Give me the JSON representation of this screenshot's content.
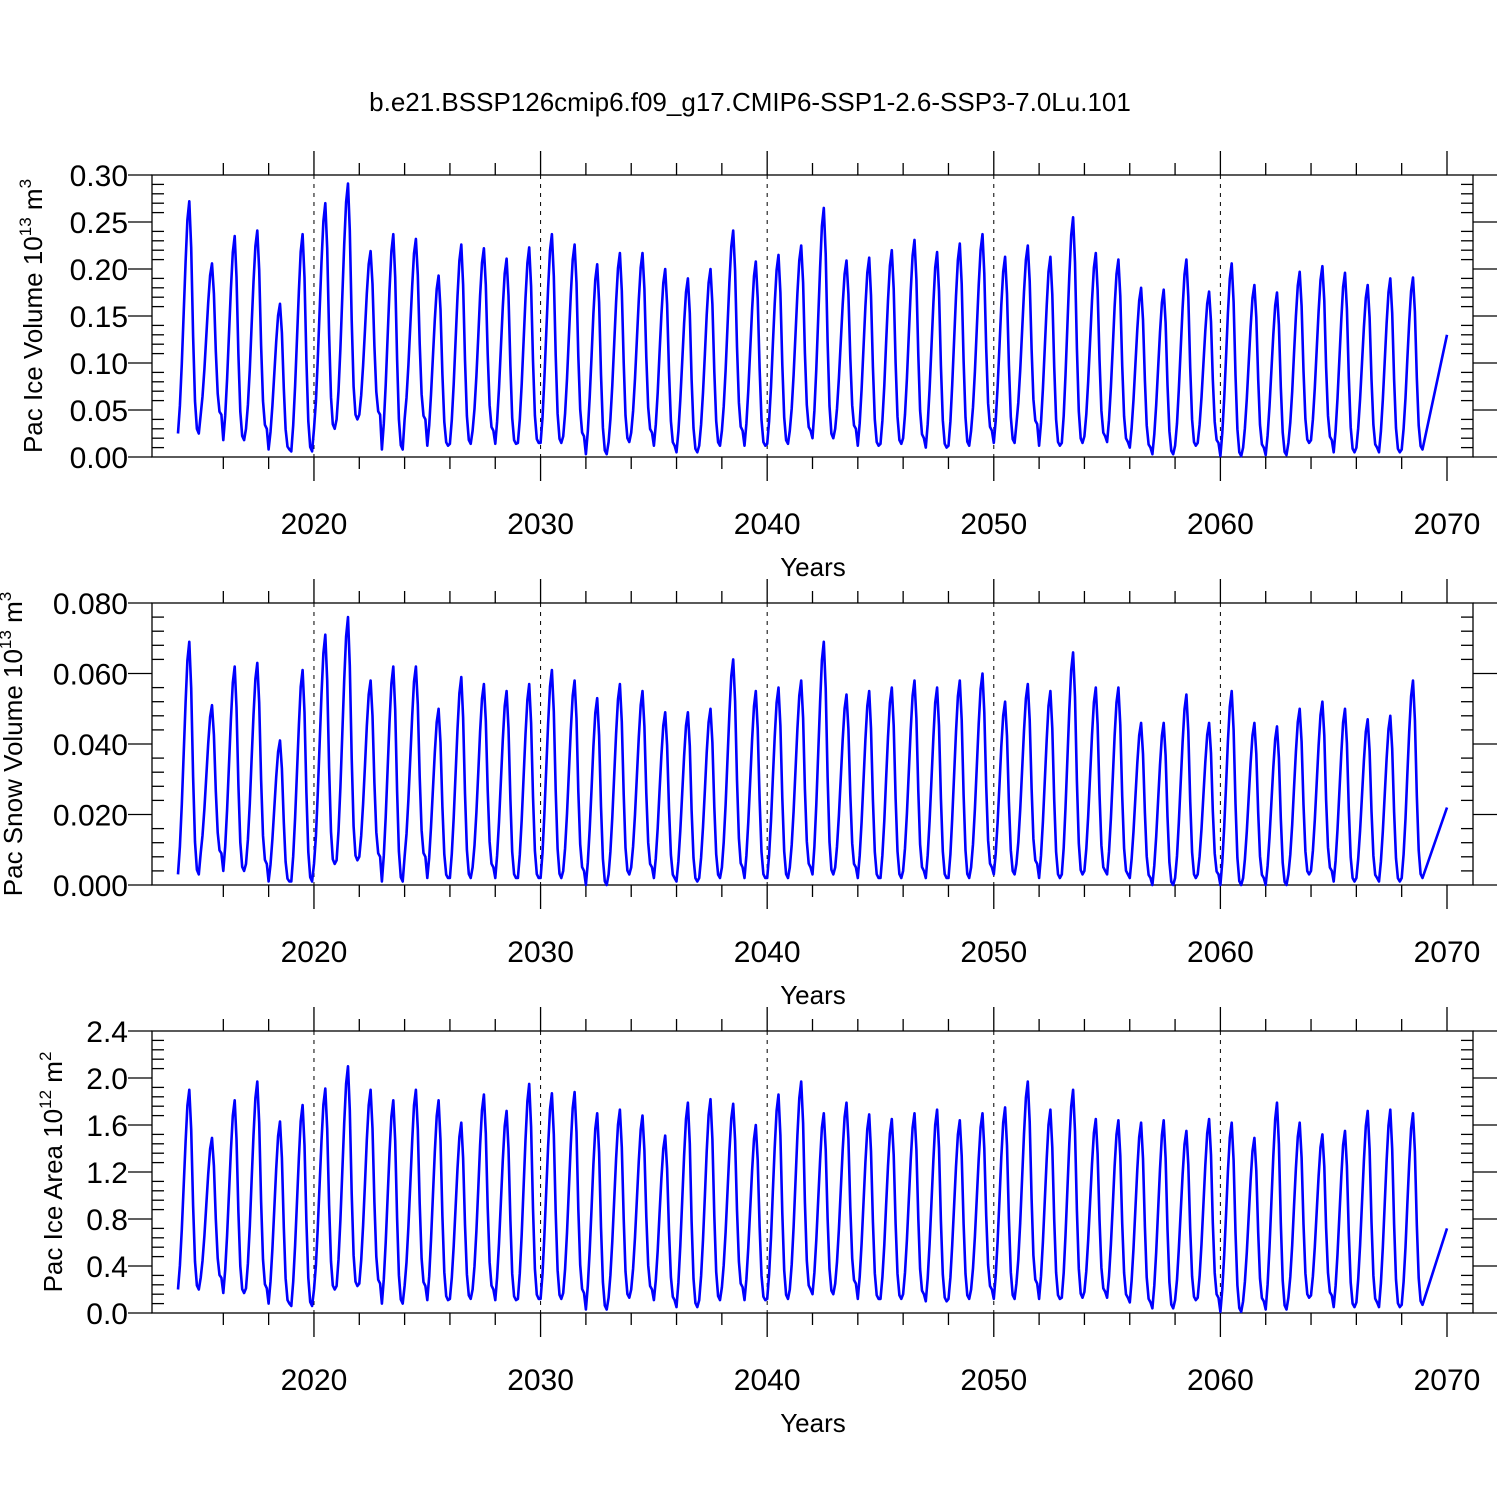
{
  "figure": {
    "title": "b.e21.BSSP126cmip6.f09_g17.CMIP6-SSP1-2.6-SSP3-7.0Lu.101"
  },
  "colors": {
    "series": "#0000ff",
    "axes": "#000000",
    "background": "#ffffff"
  },
  "chart_data": [
    {
      "type": "line",
      "title": "",
      "xlabel": "Years",
      "ylabel_main": "Pac Ice Volume 10",
      "ylabel_sup": "13",
      "ylabel_unit": " m",
      "ylabel_unit_sup": "3",
      "xlim": [
        2014,
        2070
      ],
      "ylim": [
        0.0,
        0.3
      ],
      "xticks": [
        2020,
        2030,
        2040,
        2050,
        2060,
        2070
      ],
      "xtick_labels": [
        "2020",
        "2030",
        "2040",
        "2050",
        "2060",
        "2070"
      ],
      "yticks": [
        0.0,
        0.05,
        0.1,
        0.15,
        0.2,
        0.25,
        0.3
      ],
      "ytick_labels": [
        "0.00",
        "0.05",
        "0.10",
        "0.15",
        "0.20",
        "0.25",
        "0.30"
      ],
      "grid": "x-only dashed",
      "series": [
        {
          "name": "Pac Ice Volume",
          "color": "#0000ff",
          "start": 2014.0,
          "end": 2070.0,
          "points_per_year": 12,
          "annual_max": [
            0.272,
            0.206,
            0.235,
            0.241,
            0.163,
            0.237,
            0.27,
            0.291,
            0.219,
            0.237,
            0.232,
            0.193,
            0.226,
            0.222,
            0.211,
            0.223,
            0.237,
            0.226,
            0.205,
            0.217,
            0.217,
            0.2,
            0.19,
            0.2,
            0.241,
            0.208,
            0.215,
            0.225,
            0.265,
            0.209,
            0.212,
            0.22,
            0.231,
            0.218,
            0.227,
            0.237,
            0.213,
            0.225,
            0.213,
            0.255,
            0.217,
            0.21,
            0.18,
            0.178,
            0.21,
            0.176,
            0.206,
            0.183,
            0.175,
            0.197,
            0.203,
            0.196,
            0.183,
            0.19,
            0.191
          ],
          "annual_min": [
            0.025,
            0.045,
            0.018,
            0.03,
            0.008,
            0.006,
            0.03,
            0.04,
            0.045,
            0.008,
            0.04,
            0.012,
            0.014,
            0.028,
            0.014,
            0.015,
            0.015,
            0.022,
            0.003,
            0.016,
            0.026,
            0.012,
            0.005,
            0.012,
            0.028,
            0.012,
            0.014,
            0.028,
            0.02,
            0.03,
            0.012,
            0.014,
            0.02,
            0.01,
            0.012,
            0.028,
            0.015,
            0.035,
            0.012,
            0.015,
            0.022,
            0.016,
            0.01,
            0.003,
            0.012,
            0.015,
            0.001,
            0.01,
            0.002,
            0.015,
            0.018,
            0.005,
            0.01,
            0.005,
            0.008
          ],
          "last_value": 0.13
        }
      ]
    },
    {
      "type": "line",
      "title": "",
      "xlabel": "Years",
      "ylabel_main": "Pac Snow Volume 10",
      "ylabel_sup": "13",
      "ylabel_unit": " m",
      "ylabel_unit_sup": "3",
      "xlim": [
        2014,
        2070
      ],
      "ylim": [
        0.0,
        0.08
      ],
      "xticks": [
        2020,
        2030,
        2040,
        2050,
        2060,
        2070
      ],
      "xtick_labels": [
        "2020",
        "2030",
        "2040",
        "2050",
        "2060",
        "2070"
      ],
      "yticks": [
        0.0,
        0.02,
        0.04,
        0.06,
        0.08
      ],
      "ytick_labels": [
        "0.000",
        "0.020",
        "0.040",
        "0.060",
        "0.080"
      ],
      "grid": "x-only dashed",
      "series": [
        {
          "name": "Pac Snow Volume",
          "color": "#0000ff",
          "start": 2014.0,
          "end": 2070.0,
          "points_per_year": 12,
          "annual_max": [
            0.069,
            0.051,
            0.062,
            0.063,
            0.041,
            0.061,
            0.071,
            0.076,
            0.058,
            0.062,
            0.062,
            0.05,
            0.059,
            0.057,
            0.055,
            0.057,
            0.061,
            0.058,
            0.053,
            0.057,
            0.055,
            0.049,
            0.049,
            0.05,
            0.064,
            0.055,
            0.056,
            0.058,
            0.069,
            0.054,
            0.055,
            0.056,
            0.058,
            0.056,
            0.058,
            0.06,
            0.052,
            0.057,
            0.055,
            0.066,
            0.056,
            0.056,
            0.046,
            0.046,
            0.054,
            0.046,
            0.055,
            0.046,
            0.045,
            0.05,
            0.052,
            0.05,
            0.047,
            0.048,
            0.058
          ],
          "annual_min": [
            0.003,
            0.009,
            0.004,
            0.006,
            0.001,
            0.001,
            0.006,
            0.007,
            0.008,
            0.001,
            0.008,
            0.002,
            0.002,
            0.005,
            0.002,
            0.002,
            0.002,
            0.004,
            0.0,
            0.003,
            0.005,
            0.002,
            0.001,
            0.002,
            0.005,
            0.002,
            0.002,
            0.005,
            0.003,
            0.005,
            0.002,
            0.002,
            0.004,
            0.002,
            0.002,
            0.005,
            0.003,
            0.006,
            0.002,
            0.003,
            0.004,
            0.003,
            0.002,
            0.0,
            0.002,
            0.003,
            0.0,
            0.002,
            0.0,
            0.003,
            0.004,
            0.001,
            0.002,
            0.001,
            0.002
          ],
          "last_value": 0.022
        }
      ]
    },
    {
      "type": "line",
      "title": "",
      "xlabel": "Years",
      "ylabel_main": "Pac Ice Area 10",
      "ylabel_sup": "12",
      "ylabel_unit": " m",
      "ylabel_unit_sup": "2",
      "xlim": [
        2014,
        2070
      ],
      "ylim": [
        0.0,
        2.4
      ],
      "xticks": [
        2020,
        2030,
        2040,
        2050,
        2060,
        2070
      ],
      "xtick_labels": [
        "2020",
        "2030",
        "2040",
        "2050",
        "2060",
        "2070"
      ],
      "yticks": [
        0.0,
        0.4,
        0.8,
        1.2,
        1.6,
        2.0,
        2.4
      ],
      "ytick_labels": [
        "0.0",
        "0.4",
        "0.8",
        "1.2",
        "1.6",
        "2.0",
        "2.4"
      ],
      "grid": "x-only dashed",
      "series": [
        {
          "name": "Pac Ice Area",
          "color": "#0000ff",
          "start": 2014.0,
          "end": 2070.0,
          "points_per_year": 12,
          "annual_max": [
            1.9,
            1.49,
            1.81,
            1.97,
            1.63,
            1.77,
            1.91,
            2.1,
            1.9,
            1.81,
            1.9,
            1.81,
            1.62,
            1.86,
            1.72,
            1.95,
            1.87,
            1.88,
            1.7,
            1.73,
            1.68,
            1.51,
            1.79,
            1.82,
            1.78,
            1.6,
            1.86,
            1.97,
            1.7,
            1.79,
            1.69,
            1.65,
            1.7,
            1.73,
            1.64,
            1.7,
            1.75,
            1.97,
            1.73,
            1.9,
            1.65,
            1.64,
            1.62,
            1.64,
            1.55,
            1.65,
            1.62,
            1.49,
            1.79,
            1.62,
            1.52,
            1.55,
            1.72,
            1.73,
            1.7
          ],
          "annual_min": [
            0.2,
            0.3,
            0.17,
            0.21,
            0.08,
            0.06,
            0.2,
            0.23,
            0.25,
            0.08,
            0.23,
            0.11,
            0.12,
            0.2,
            0.11,
            0.12,
            0.12,
            0.17,
            0.03,
            0.13,
            0.2,
            0.11,
            0.05,
            0.11,
            0.22,
            0.11,
            0.12,
            0.2,
            0.16,
            0.25,
            0.12,
            0.12,
            0.16,
            0.1,
            0.12,
            0.2,
            0.12,
            0.25,
            0.12,
            0.13,
            0.18,
            0.13,
            0.09,
            0.04,
            0.11,
            0.13,
            0.01,
            0.1,
            0.03,
            0.13,
            0.15,
            0.05,
            0.09,
            0.05,
            0.07
          ],
          "last_value": 0.72
        }
      ]
    }
  ]
}
